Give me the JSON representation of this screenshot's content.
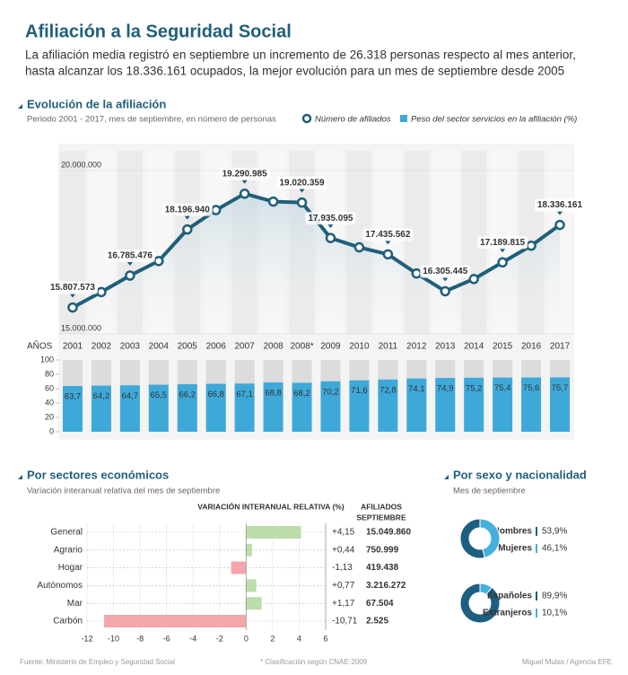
{
  "header": {
    "title": "Afiliación a la Seguridad Social",
    "subtitle_lines": [
      "La afiliación media registró en septiembre un incremento de 26.318 personas respecto al mes anterior,",
      "hasta alcanzar los 18.336.161 ocupados, la mejor evolución para un mes de septiembre desde 2005"
    ]
  },
  "chart_data": [
    {
      "type": "line",
      "title": "Evolución de la afiliación",
      "subtitle": "Periodo 2001 - 2017, mes de septiembre, en número de personas",
      "x_label": "AÑOS",
      "categories": [
        "2001",
        "2002",
        "2003",
        "2004",
        "2005",
        "2006",
        "2007",
        "2008",
        "2008*",
        "2009",
        "2010",
        "2011",
        "2012",
        "2013",
        "2014",
        "2015",
        "2016",
        "2017"
      ],
      "series": [
        {
          "name": "Número de afiliados",
          "color": "#1f5f7a",
          "values": [
            15807573,
            16280000,
            16785476,
            17230000,
            18196940,
            18790000,
            19290985,
            19050000,
            19020359,
            17935095,
            17650000,
            17435562,
            16850000,
            16305445,
            16680000,
            17189815,
            17700000,
            18336161
          ],
          "value_labels": [
            "15.807.573",
            null,
            "16.785.476",
            null,
            "18.196.940",
            null,
            "19.290.985",
            null,
            "19.020.359",
            "17.935.095",
            null,
            "17.435.562",
            null,
            "16.305.445",
            null,
            "17.189.815",
            null,
            "18.336.161"
          ]
        },
        {
          "name": "Peso del sector servicios en la afiliación (%)",
          "color": "#3ea9d9",
          "type": "bar",
          "axis": "y2",
          "values": [
            63.7,
            64.2,
            64.7,
            65.5,
            66.2,
            66.8,
            67.1,
            68.8,
            68.2,
            70.2,
            71.6,
            72.8,
            74.1,
            74.9,
            75.2,
            75.4,
            75.6,
            75.7
          ],
          "value_labels": [
            "63,7",
            "64,2",
            "64,7",
            "65,5",
            "66,2",
            "66,8",
            "67,1",
            "68,8",
            "68,2",
            "70,2",
            "71,6",
            "72,8",
            "74,1",
            "74,9",
            "75,2",
            "75,4",
            "75,6",
            "75,7"
          ]
        }
      ],
      "ylim": [
        15000000,
        20000000
      ],
      "yticks": [
        {
          "value": 15000000,
          "label": "15.000.000"
        },
        {
          "value": 20000000,
          "label": "20.000.000"
        }
      ],
      "y2lim": [
        0,
        100
      ],
      "y2ticks": [
        0,
        20,
        40,
        60,
        80,
        100
      ]
    },
    {
      "type": "hbar",
      "title": "Por sectores económicos",
      "subtitle": "Variación interanual relativa del mes de septiembre",
      "value_header": "VARIACIÓN INTERANUAL RELATIVA (%)",
      "afiliados_header": [
        "AFILIADOS",
        "SEPTIEMBRE"
      ],
      "categories": [
        "General",
        "Agrario",
        "Hogar",
        "Autónomos",
        "Mar",
        "Carbón"
      ],
      "values": [
        4.15,
        0.44,
        -1.13,
        0.77,
        1.17,
        -10.71
      ],
      "value_labels": [
        "+4,15",
        "+0,44",
        "-1,13",
        "+0,77",
        "+1,17",
        "-10,71"
      ],
      "afiliados": [
        "15.049.860",
        "750.999",
        "419.438",
        "3.216.272",
        "67.504",
        "2.525"
      ],
      "color_positive": "#bcdcaa",
      "color_negative": "#f4a6ab",
      "xlim": [
        -12,
        6
      ],
      "xticks": [
        -12,
        -10,
        -8,
        -6,
        -4,
        -2,
        0,
        2,
        4,
        6
      ]
    },
    {
      "type": "pie",
      "title": "Por sexo y nacionalidad",
      "subtitle": "Mes de septiembre",
      "categories": [
        "Hombres",
        "Mujeres"
      ],
      "values": [
        53.9,
        46.1
      ],
      "value_labels": [
        "53,9%",
        "46,1%"
      ],
      "colors": [
        "#1d5f80",
        "#45b0de"
      ]
    },
    {
      "type": "pie",
      "categories": [
        "Españoles",
        "Extranjeros"
      ],
      "values": [
        89.9,
        10.1
      ],
      "value_labels": [
        "89,9%",
        "10,1%"
      ],
      "colors": [
        "#1d5f80",
        "#45b0de"
      ]
    }
  ],
  "footer": {
    "source": "Fuente: Ministerio de Empleo y Seguridad Social",
    "note": "* Clasificación según CNAE-2009",
    "credit": "Miguel Mulas / Agencia EFE"
  }
}
